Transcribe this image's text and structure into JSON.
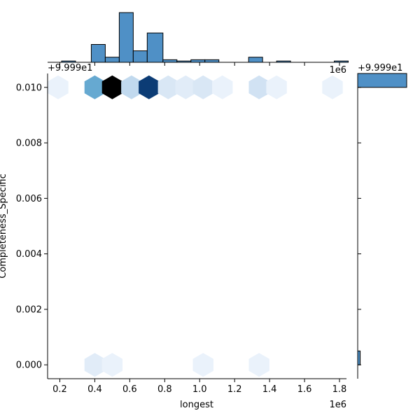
{
  "chart_data": {
    "type": "hexbin-joint",
    "xlabel": "longest",
    "ylabel": "Completeness_Specific",
    "x_offset_label": "1e6",
    "y_offset_label": "+9.999e1",
    "marg_y_offset_label": "+9.999e1",
    "xlim": [
      0.13,
      1.84
    ],
    "ylim": [
      -0.0005,
      0.0105
    ],
    "x_ticks": [
      0.2,
      0.4,
      0.6,
      0.8,
      1.0,
      1.2,
      1.4,
      1.6,
      1.8
    ],
    "x_tick_labels": [
      "0.2",
      "0.4",
      "0.6",
      "0.8",
      "1.0",
      "1.2",
      "1.4",
      "1.6",
      "1.8"
    ],
    "y_ticks": [
      0.0,
      0.002,
      0.004,
      0.006,
      0.008,
      0.01
    ],
    "y_tick_labels": [
      "0.000",
      "0.002",
      "0.004",
      "0.006",
      "0.008",
      "0.010"
    ],
    "hexbins": [
      {
        "x": 0.19,
        "y": 0.01,
        "count": 1
      },
      {
        "x": 0.4,
        "y": 0.01,
        "count": 13
      },
      {
        "x": 0.5,
        "y": 0.01,
        "count": 36
      },
      {
        "x": 0.61,
        "y": 0.01,
        "count": 6
      },
      {
        "x": 0.71,
        "y": 0.01,
        "count": 27
      },
      {
        "x": 0.82,
        "y": 0.01,
        "count": 3
      },
      {
        "x": 0.92,
        "y": 0.01,
        "count": 2
      },
      {
        "x": 1.02,
        "y": 0.01,
        "count": 3
      },
      {
        "x": 1.13,
        "y": 0.01,
        "count": 1
      },
      {
        "x": 1.34,
        "y": 0.01,
        "count": 4
      },
      {
        "x": 1.44,
        "y": 0.01,
        "count": 1
      },
      {
        "x": 1.76,
        "y": 0.01,
        "count": 1
      },
      {
        "x": 0.4,
        "y": 0.0,
        "count": 2
      },
      {
        "x": 0.5,
        "y": 0.0,
        "count": 1
      },
      {
        "x": 1.02,
        "y": 0.0,
        "count": 1
      },
      {
        "x": 1.34,
        "y": 0.0,
        "count": 1
      }
    ],
    "x_histogram": {
      "bin_edges": [
        0.13,
        0.21,
        0.29,
        0.38,
        0.46,
        0.54,
        0.62,
        0.7,
        0.79,
        0.87,
        0.95,
        1.03,
        1.11,
        1.2,
        1.28,
        1.36,
        1.44,
        1.52,
        1.61,
        1.69,
        1.77,
        1.85
      ],
      "counts": [
        0,
        1,
        0,
        14,
        4,
        39,
        9,
        23,
        2,
        1,
        2,
        2,
        0,
        0,
        4,
        0,
        1,
        0,
        0,
        0,
        1
      ]
    },
    "y_histogram": {
      "bin_edges": [
        -0.0005,
        0.0,
        0.0005,
        0.001,
        0.0015,
        0.002,
        0.0025,
        0.003,
        0.0035,
        0.004,
        0.0045,
        0.005,
        0.0055,
        0.006,
        0.0065,
        0.007,
        0.0075,
        0.008,
        0.0085,
        0.009,
        0.0095,
        0.01,
        0.0105
      ],
      "counts": [
        0,
        5,
        0,
        0,
        0,
        0,
        0,
        0,
        0,
        0,
        0,
        0,
        0,
        0,
        0,
        0,
        0,
        0,
        0,
        0,
        0,
        98
      ]
    },
    "colors": {
      "hist_fill": "#4f90c6",
      "hex_light": "#f7fbff",
      "hex_dark": "#000000"
    }
  }
}
